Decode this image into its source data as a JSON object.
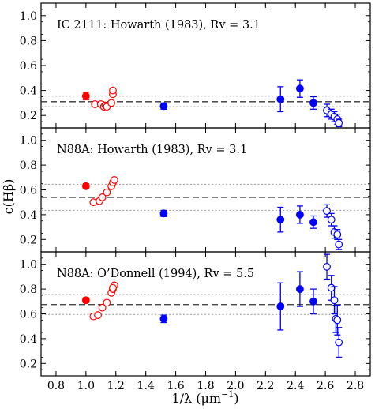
{
  "figure": {
    "xlabel": "1/λ (μm",
    "xlabel_sup": "−1",
    "xlabel_close": ")",
    "ylabel": "c(Hβ)"
  },
  "chart_data": [
    {
      "type": "scatter",
      "title": "IC 2111: Howarth (1983), Rv = 3.1",
      "xlim": [
        0.7,
        2.9
      ],
      "ylim": [
        0.1,
        1.1
      ],
      "xticks": [
        "0.8",
        "1.0",
        "1.2",
        "1.4",
        "1.6",
        "1.8",
        "2.0",
        "2.2",
        "2.4",
        "2.6",
        "2.8"
      ],
      "yticks": [
        "0.2",
        "0.4",
        "0.6",
        "0.8",
        "1.0"
      ],
      "reference_lines": {
        "mean": 0.31,
        "lower": 0.27,
        "upper": 0.355
      },
      "series": [
        {
          "color": "#ff0000",
          "marker": "filled",
          "points": [
            {
              "x": 1.0,
              "y": 0.355,
              "err": 0.03
            }
          ]
        },
        {
          "color": "#ff0000",
          "marker": "open",
          "points": [
            {
              "x": 1.06,
              "y": 0.29
            },
            {
              "x": 1.1,
              "y": 0.29
            },
            {
              "x": 1.12,
              "y": 0.27
            },
            {
              "x": 1.13,
              "y": 0.28
            },
            {
              "x": 1.14,
              "y": 0.27
            },
            {
              "x": 1.17,
              "y": 0.3
            },
            {
              "x": 1.18,
              "y": 0.37
            },
            {
              "x": 1.18,
              "y": 0.4
            }
          ]
        },
        {
          "color": "#0000ff",
          "marker": "filled",
          "points": [
            {
              "x": 1.52,
              "y": 0.275,
              "err": 0.025
            },
            {
              "x": 2.3,
              "y": 0.33,
              "err": 0.1
            },
            {
              "x": 2.43,
              "y": 0.415,
              "err": 0.07
            },
            {
              "x": 2.52,
              "y": 0.3,
              "err": 0.05
            }
          ]
        },
        {
          "color": "#0000ff",
          "marker": "open",
          "points": [
            {
              "x": 2.61,
              "y": 0.24,
              "err": 0.05
            },
            {
              "x": 2.64,
              "y": 0.21,
              "err": 0.04
            },
            {
              "x": 2.66,
              "y": 0.19,
              "err": 0.04
            },
            {
              "x": 2.68,
              "y": 0.17,
              "err": 0.04
            },
            {
              "x": 2.69,
              "y": 0.14,
              "err": 0.03
            }
          ]
        }
      ]
    },
    {
      "type": "scatter",
      "title": "N88A: Howarth (1983), Rv = 3.1",
      "xlim": [
        0.7,
        2.9
      ],
      "ylim": [
        0.1,
        1.1
      ],
      "xticks": [
        "0.8",
        "1.0",
        "1.2",
        "1.4",
        "1.6",
        "1.8",
        "2.0",
        "2.2",
        "2.4",
        "2.6",
        "2.8"
      ],
      "yticks": [
        "0.2",
        "0.4",
        "0.6",
        "0.8",
        "1.0"
      ],
      "reference_lines": {
        "mean": 0.54,
        "lower": 0.435,
        "upper": 0.645
      },
      "series": [
        {
          "color": "#ff0000",
          "marker": "filled",
          "points": [
            {
              "x": 1.0,
              "y": 0.63,
              "err": 0.02
            }
          ]
        },
        {
          "color": "#ff0000",
          "marker": "open",
          "points": [
            {
              "x": 1.05,
              "y": 0.5
            },
            {
              "x": 1.09,
              "y": 0.51
            },
            {
              "x": 1.11,
              "y": 0.54
            },
            {
              "x": 1.14,
              "y": 0.58
            },
            {
              "x": 1.17,
              "y": 0.63
            },
            {
              "x": 1.18,
              "y": 0.66
            },
            {
              "x": 1.19,
              "y": 0.68
            }
          ]
        },
        {
          "color": "#0000ff",
          "marker": "filled",
          "points": [
            {
              "x": 1.52,
              "y": 0.41,
              "err": 0.025
            },
            {
              "x": 2.3,
              "y": 0.36,
              "err": 0.1
            },
            {
              "x": 2.43,
              "y": 0.4,
              "err": 0.07
            },
            {
              "x": 2.52,
              "y": 0.34,
              "err": 0.05
            }
          ]
        },
        {
          "color": "#0000ff",
          "marker": "open",
          "points": [
            {
              "x": 2.61,
              "y": 0.43,
              "err": 0.05
            },
            {
              "x": 2.64,
              "y": 0.36,
              "err": 0.05
            },
            {
              "x": 2.66,
              "y": 0.26,
              "err": 0.05
            },
            {
              "x": 2.68,
              "y": 0.24,
              "err": 0.04
            },
            {
              "x": 2.69,
              "y": 0.16,
              "err": 0.04
            }
          ]
        }
      ]
    },
    {
      "type": "scatter",
      "title": "N88A: O’Donnell (1994), Rv = 5.5",
      "xlim": [
        0.7,
        2.9
      ],
      "ylim": [
        0.1,
        1.1
      ],
      "xticks": [
        "0.8",
        "1.0",
        "1.2",
        "1.4",
        "1.6",
        "1.8",
        "2.0",
        "2.2",
        "2.4",
        "2.6",
        "2.8"
      ],
      "yticks": [
        "0.2",
        "0.4",
        "0.6",
        "0.8",
        "1.0"
      ],
      "reference_lines": {
        "mean": 0.675,
        "lower": 0.595,
        "upper": 0.755
      },
      "series": [
        {
          "color": "#ff0000",
          "marker": "filled",
          "points": [
            {
              "x": 1.0,
              "y": 0.71,
              "err": 0.02
            }
          ]
        },
        {
          "color": "#ff0000",
          "marker": "open",
          "points": [
            {
              "x": 1.05,
              "y": 0.58
            },
            {
              "x": 1.08,
              "y": 0.59
            },
            {
              "x": 1.11,
              "y": 0.65
            },
            {
              "x": 1.14,
              "y": 0.69
            },
            {
              "x": 1.17,
              "y": 0.77
            },
            {
              "x": 1.18,
              "y": 0.8
            },
            {
              "x": 1.19,
              "y": 0.83
            },
            {
              "x": 1.18,
              "y": 0.81
            }
          ]
        },
        {
          "color": "#0000ff",
          "marker": "filled",
          "points": [
            {
              "x": 1.52,
              "y": 0.56,
              "err": 0.03
            },
            {
              "x": 2.3,
              "y": 0.66,
              "err": 0.19
            },
            {
              "x": 2.43,
              "y": 0.8,
              "err": 0.14
            },
            {
              "x": 2.52,
              "y": 0.7,
              "err": 0.1
            }
          ]
        },
        {
          "color": "#0000ff",
          "marker": "open",
          "points": [
            {
              "x": 2.61,
              "y": 0.98,
              "err": 0.1
            },
            {
              "x": 2.64,
              "y": 0.81,
              "err": 0.1
            },
            {
              "x": 2.66,
              "y": 0.71,
              "err": 0.11
            },
            {
              "x": 2.67,
              "y": 0.56,
              "err": 0.11
            },
            {
              "x": 2.68,
              "y": 0.55,
              "err": 0.12
            },
            {
              "x": 2.69,
              "y": 0.37,
              "err": 0.12
            }
          ]
        }
      ]
    }
  ]
}
